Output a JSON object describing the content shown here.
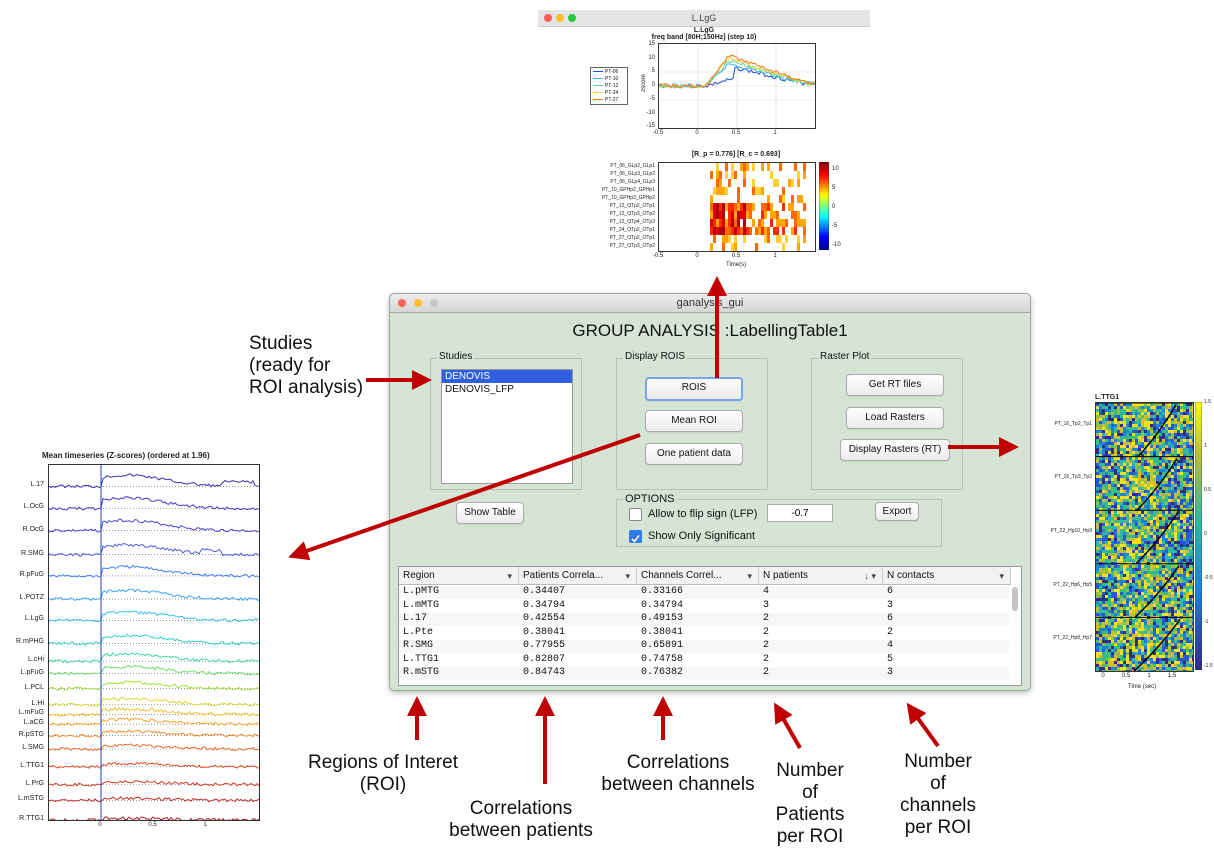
{
  "colors": {
    "arrow": "#c00000",
    "gui_bg": "#d5e4d5",
    "selection": "#2f5fe0"
  },
  "top_fig": {
    "window_title": "L.LgG",
    "title": "L.LgG",
    "subtitle": "freq band [80H;150Hz] (step 10)",
    "ylabel": "zscore",
    "yticks": [
      "15",
      "10",
      "5",
      "0",
      "-5",
      "-10",
      "-15"
    ],
    "xticks": [
      "-0.5",
      "0",
      "0.5",
      "1"
    ],
    "legend": [
      "PT-06",
      "PT-10",
      "PT-12",
      "PT-24",
      "PT-27"
    ],
    "legend_colors": [
      "#1f4fd1",
      "#3fb7e8",
      "#57d6a0",
      "#f2d53c",
      "#f07a1a"
    ],
    "heatmap_title": "[R_p = 0.776]  [R_c = 0.693]",
    "heatmap_rows": [
      "PT_06_GLp2_GLp1",
      "PT_06_GLp3_GLp2",
      "PT_06_GLp4_GLp3",
      "PT_10_GPHp2_GPHp1",
      "PT_10_GPHp3_GPHp2",
      "PT_12_OTp2_OTp1",
      "PT_12_OTp3_OTp2",
      "PT_12_OTp4_OTp3",
      "PT_24_OTp2_OTp1",
      "PT_27_OTp2_OTp1",
      "PT_27_OTp3_OTp2"
    ],
    "heatmap_xticks": [
      "-0.5",
      "0",
      "0.5",
      "1"
    ],
    "heatmap_xlabel": "Time(s)",
    "colorbar_ticks": [
      "10",
      "5",
      "0",
      "-5",
      "-10"
    ]
  },
  "left_fig": {
    "title": "Mean timeseries (Z-scores) (ordered at 1.96)",
    "rows": [
      "L.17",
      "L.OcG",
      "R.OcG",
      "R.SMG",
      "R.pFuG",
      "L.POTZ",
      "L.LgG",
      "R.mPHG",
      "L.cHi",
      "L.pFuG",
      "L.PCL",
      "L.Hi",
      "L.mFuG",
      "L.aCG",
      "R.pSTG",
      "L.SMG",
      "L.TTG1",
      "L.PrG",
      "L.mSTG",
      "R.TTG1"
    ],
    "xticks": [
      "0",
      "0.5",
      "1"
    ]
  },
  "right_fig": {
    "title": "L.TTG1",
    "rows": [
      "PT_16_Tp2_Tp1",
      "PT_16_Tp3_Tp2",
      "PT_22_Hp10_Hp9",
      "PT_22_Hp6_Hp5",
      "PT_22_Hp8_Hp7"
    ],
    "xticks": [
      "0",
      "0.5",
      "1",
      "1.5"
    ],
    "xlabel": "Time (sec)",
    "colorbar_ticks": [
      "1.5",
      "1",
      "0.5",
      "0",
      "-0.5",
      "-1",
      "-1.5"
    ]
  },
  "gui": {
    "window_title": "ganalysis_gui",
    "heading": "GROUP ANALYSIS :LabellingTable1",
    "studies_label": "Studies",
    "studies": [
      "DENOVIS",
      "DENOVIS_LFP"
    ],
    "display_label": "Display ROIS",
    "btn_rois": "ROIS",
    "btn_mean": "Mean ROI",
    "btn_one": "One patient data",
    "raster_label": "Raster Plot",
    "btn_rt": "Get RT files",
    "btn_load": "Load Rasters",
    "btn_display": "Display Rasters (RT)",
    "btn_show_table": "Show Table",
    "options_label": "OPTIONS",
    "opt_flip": "Allow to flip sign (LFP)",
    "opt_sig": "Show Only Significant",
    "threshold": "-0.7",
    "btn_export": "Export",
    "table": {
      "columns": [
        "Region",
        "Patients Correla...",
        "Channels Correl...",
        "N patients",
        "N contacts"
      ],
      "rows": [
        [
          "L.pMTG",
          "0.34407",
          "0.33166",
          "4",
          "6"
        ],
        [
          "L.mMTG",
          "0.34794",
          "0.34794",
          "3",
          "3"
        ],
        [
          "L.17",
          "0.42554",
          "0.49153",
          "2",
          "6"
        ],
        [
          "L.Pte",
          "0.38041",
          "0.38041",
          "2",
          "2"
        ],
        [
          "R.SMG",
          "0.77955",
          "0.65891",
          "2",
          "4"
        ],
        [
          "L.TTG1",
          "0.82807",
          "0.74758",
          "2",
          "5"
        ],
        [
          "R.mSTG",
          "0.84743",
          "0.76382",
          "2",
          "3"
        ]
      ]
    }
  },
  "annotations": {
    "studies": [
      "Studies",
      "(ready for",
      "ROI analysis)"
    ],
    "roi": [
      "Regions of Interet",
      "(ROI)"
    ],
    "corr_patients": [
      "Correlations",
      "between patients"
    ],
    "corr_channels": [
      "Correlations",
      "between channels"
    ],
    "n_patients": [
      "Number",
      "of",
      "Patients",
      "per ROI"
    ],
    "n_channels": [
      "Number",
      "of",
      "channels",
      "per ROI"
    ]
  }
}
